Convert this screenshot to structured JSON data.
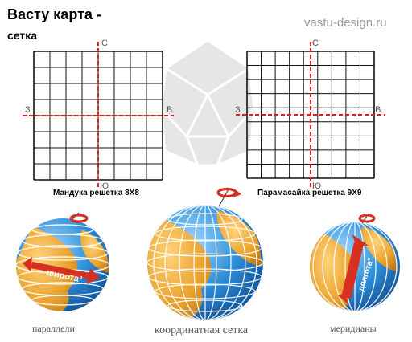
{
  "header": {
    "title": "Васту карта -",
    "subtitle": "сетка",
    "site": "vastu-design.ru"
  },
  "grids": [
    {
      "caption": "Мандука решетка  8X8",
      "cells": 8,
      "north": "С",
      "south": "Ю",
      "west": "З",
      "east": "В"
    },
    {
      "caption": "Парамасайка решетка  9X9",
      "cells": 9,
      "north": "С",
      "south": "Ю",
      "west": "З",
      "east": "В"
    }
  ],
  "globes": [
    {
      "caption": "параллели",
      "arrow_label": "широта°"
    },
    {
      "caption": "координатная сетка"
    },
    {
      "caption": "меридианы",
      "arrow_label": "долгота°"
    }
  ],
  "colors": {
    "grid_line": "#111111",
    "axis": "#e0221c",
    "ocean": "#2e8fd8",
    "land": "#e9a22c",
    "rotation_arrow": "#d83020",
    "watermark": "#e4e4e4"
  }
}
